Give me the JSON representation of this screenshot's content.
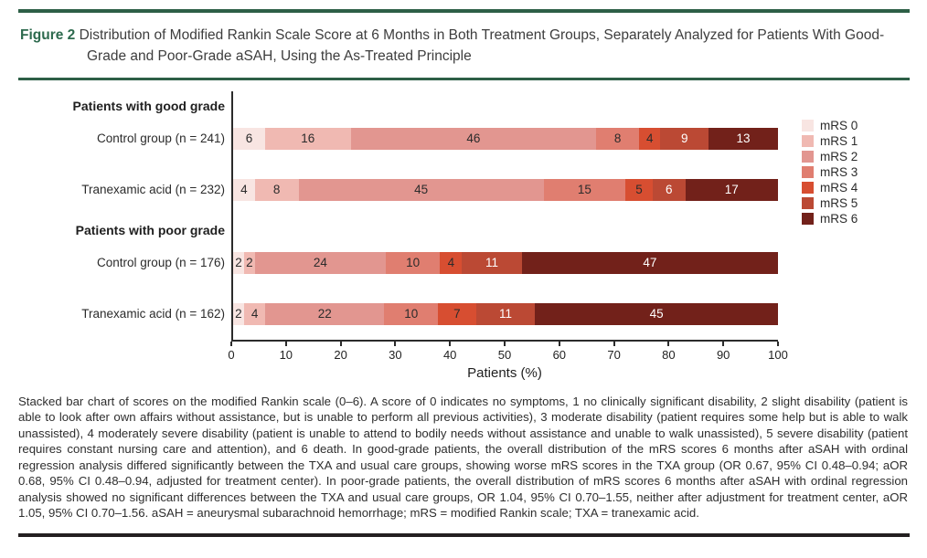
{
  "figure": {
    "label": "Figure 2",
    "title": "Distribution of Modified Rankin Scale Score at 6 Months in Both Treatment Groups, Separately Analyzed for Patients With Good-Grade and Poor-Grade aSAH, Using the As-Treated Principle"
  },
  "colors": {
    "accent_green": "#2d6a4e",
    "rule_green": "#2d5f46",
    "rule_dark": "#231f20",
    "axis": "#2b2b2b",
    "segment_text_dark": "#2b2b2b",
    "segment_text_light": "#ffffff",
    "mrs": [
      "#f8e5e2",
      "#f0b9b2",
      "#e29690",
      "#e07e70",
      "#d74e31",
      "#bb4934",
      "#72211a"
    ]
  },
  "chart_data": {
    "type": "bar",
    "stacked": true,
    "orientation": "horizontal",
    "title": "",
    "xlabel": "Patients (%)",
    "xlim": [
      0,
      100
    ],
    "xticks": [
      0,
      10,
      20,
      30,
      40,
      50,
      60,
      70,
      80,
      90,
      100
    ],
    "legend_position": "right",
    "legend": [
      "mRS 0",
      "mRS 1",
      "mRS 2",
      "mRS 3",
      "mRS 4",
      "mRS 5",
      "mRS 6"
    ],
    "groups": [
      {
        "group_label": "Patients with good grade",
        "rows": [
          {
            "label": "Control group (n = 241)",
            "values": [
              6,
              16,
              46,
              8,
              4,
              9,
              13
            ]
          },
          {
            "label": "Tranexamic acid (n = 232)",
            "values": [
              4,
              8,
              45,
              15,
              5,
              6,
              17
            ]
          }
        ]
      },
      {
        "group_label": "Patients with poor grade",
        "rows": [
          {
            "label": "Control group (n = 176)",
            "values": [
              2,
              2,
              24,
              10,
              4,
              11,
              47
            ]
          },
          {
            "label": "Tranexamic acid (n = 162)",
            "values": [
              2,
              4,
              22,
              10,
              7,
              11,
              45
            ]
          }
        ]
      }
    ]
  },
  "caption": {
    "text": "Stacked bar chart of scores on the modified Rankin scale (0–6). A score of 0 indicates no symptoms, 1 no clinically significant disability, 2 slight disability (patient is able to look after own affairs without assistance, but is unable to perform all previous activities), 3 moderate disability (patient requires some help but is able to walk unassisted), 4 moderately severe disability (patient is unable to attend to bodily needs without assistance and unable to walk unassisted), 5 severe disability (patient requires constant nursing care and attention), and 6 death. In good-grade patients, the overall distribution of the mRS scores 6 months after aSAH with ordinal regression analysis differed significantly between the TXA and usual care groups, showing worse mRS scores in the TXA group (OR 0.67, 95% CI 0.48–0.94; aOR 0.68, 95% CI 0.48–0.94, adjusted for treatment center). In poor-grade patients, the overall distribution of mRS scores 6 months after aSAH with ordinal regression analysis showed no significant differences between the TXA and usual care groups, OR 1.04, 95% CI 0.70–1.55, neither after adjustment for treatment center, aOR 1.05, 95% CI 0.70–1.56. aSAH = aneurysmal subarachnoid hemorrhage; mRS = modified Rankin scale; TXA = tranexamic acid."
  }
}
